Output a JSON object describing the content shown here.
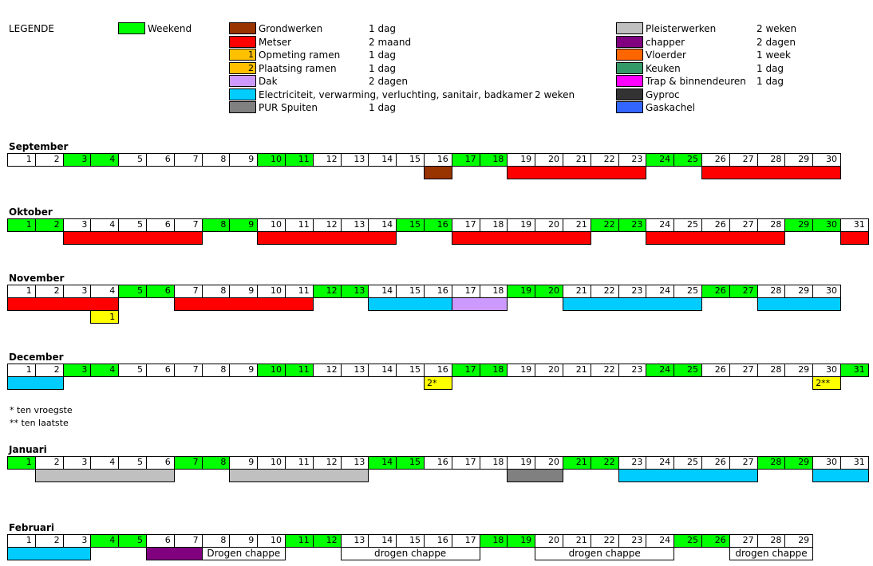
{
  "legend": {
    "title": "LEGENDE",
    "weekend": {
      "label": "Weekend",
      "color": "#00ff00"
    },
    "items_left": [
      {
        "label": "Grondwerken",
        "duration": "1 dag",
        "color": "#993300",
        "marker": ""
      },
      {
        "label": "Metser",
        "duration": "2 maand",
        "color": "#ff0000",
        "marker": ""
      },
      {
        "label": "Opmeting ramen",
        "duration": "1 dag",
        "color": "#ffc000",
        "marker": "1"
      },
      {
        "label": "Plaatsing ramen",
        "duration": "1 dag",
        "color": "#ffc000",
        "marker": "2"
      },
      {
        "label": "Dak",
        "duration": "2 dagen",
        "color": "#cc99ff",
        "marker": ""
      },
      {
        "label": "Electriciteit, verwarming, verluchting, sanitair, badkamer",
        "duration": "2 weken",
        "color": "#00ccff",
        "marker": ""
      },
      {
        "label": "PUR Spuiten",
        "duration": "1 dag",
        "color": "#808080",
        "marker": ""
      }
    ],
    "items_right": [
      {
        "label": "Pleisterwerken",
        "duration": "2 weken",
        "color": "#c0c0c0"
      },
      {
        "label": "chapper",
        "duration": "2 dagen",
        "color": "#800080"
      },
      {
        "label": "Vloerder",
        "duration": "1 week",
        "color": "#ff6600"
      },
      {
        "label": "Keuken",
        "duration": "1 dag",
        "color": "#339966"
      },
      {
        "label": "Trap & binnendeuren",
        "duration": "1 dag",
        "color": "#ff00ff"
      },
      {
        "label": "Gyproc",
        "duration": "",
        "color": "#333333"
      },
      {
        "label": "Gaskachel",
        "duration": "",
        "color": "#3366ff"
      }
    ]
  },
  "months": [
    {
      "name": "September",
      "days": 30,
      "weekends": [
        3,
        4,
        10,
        11,
        17,
        18,
        24,
        25
      ],
      "bars": [
        {
          "start": 16,
          "end": 16,
          "color": "#993300",
          "text": ""
        },
        {
          "start": 19,
          "end": 23,
          "color": "#ff0000",
          "text": ""
        },
        {
          "start": 26,
          "end": 30,
          "color": "#ff0000",
          "text": ""
        }
      ]
    },
    {
      "name": "Oktober",
      "days": 31,
      "weekends": [
        1,
        2,
        8,
        9,
        15,
        16,
        22,
        23,
        29,
        30
      ],
      "bars": [
        {
          "start": 3,
          "end": 7,
          "color": "#ff0000",
          "text": ""
        },
        {
          "start": 10,
          "end": 14,
          "color": "#ff0000",
          "text": ""
        },
        {
          "start": 17,
          "end": 21,
          "color": "#ff0000",
          "text": ""
        },
        {
          "start": 24,
          "end": 28,
          "color": "#ff0000",
          "text": ""
        },
        {
          "start": 31,
          "end": 31,
          "color": "#ff0000",
          "text": ""
        }
      ]
    },
    {
      "name": "November",
      "days": 30,
      "weekends": [
        5,
        6,
        12,
        13,
        19,
        20,
        26,
        27
      ],
      "bars": [
        {
          "start": 1,
          "end": 4,
          "color": "#ff0000",
          "text": ""
        },
        {
          "start": 7,
          "end": 11,
          "color": "#ff0000",
          "text": ""
        },
        {
          "start": 14,
          "end": 16,
          "color": "#00ccff",
          "text": ""
        },
        {
          "start": 17,
          "end": 18,
          "color": "#cc99ff",
          "text": ""
        },
        {
          "start": 21,
          "end": 25,
          "color": "#00ccff",
          "text": ""
        },
        {
          "start": 28,
          "end": 30,
          "color": "#00ccff",
          "text": ""
        }
      ],
      "bars2": [
        {
          "start": 4,
          "end": 4,
          "color": "#ffff00",
          "text": "1",
          "align": "right"
        }
      ]
    },
    {
      "name": "December",
      "days": 31,
      "weekends": [
        3,
        4,
        10,
        11,
        17,
        18,
        24,
        25,
        31
      ],
      "bars": [
        {
          "start": 1,
          "end": 2,
          "color": "#00ccff",
          "text": ""
        },
        {
          "start": 16,
          "end": 16,
          "color": "#ffff00",
          "text": "2*"
        },
        {
          "start": 30,
          "end": 30,
          "color": "#ffff00",
          "text": "2**"
        }
      ]
    },
    {
      "name": "Januari",
      "days": 31,
      "weekends": [
        1,
        7,
        8,
        14,
        15,
        21,
        22,
        28,
        29
      ],
      "bars": [
        {
          "start": 2,
          "end": 6,
          "color": "#c0c0c0",
          "text": ""
        },
        {
          "start": 9,
          "end": 13,
          "color": "#c0c0c0",
          "text": ""
        },
        {
          "start": 19,
          "end": 20,
          "color": "#808080",
          "text": ""
        },
        {
          "start": 23,
          "end": 27,
          "color": "#00ccff",
          "text": ""
        },
        {
          "start": 30,
          "end": 31,
          "color": "#00ccff",
          "text": ""
        }
      ]
    },
    {
      "name": "Februari",
      "days": 29,
      "weekends": [
        4,
        5,
        11,
        12,
        18,
        19,
        25,
        26
      ],
      "bars": [
        {
          "start": 1,
          "end": 3,
          "color": "#00ccff",
          "text": ""
        },
        {
          "start": 6,
          "end": 7,
          "color": "#800080",
          "text": ""
        },
        {
          "start": 8,
          "end": 10,
          "color": "#ffffff",
          "text": "Drogen chappe"
        },
        {
          "start": 13,
          "end": 17,
          "color": "#ffffff",
          "text": "drogen chappe"
        },
        {
          "start": 20,
          "end": 24,
          "color": "#ffffff",
          "text": "drogen chappe"
        },
        {
          "start": 27,
          "end": 29,
          "color": "#ffffff",
          "text": "drogen chappe"
        }
      ]
    }
  ],
  "notes": [
    "* ten vroegste",
    "** ten laatste"
  ]
}
